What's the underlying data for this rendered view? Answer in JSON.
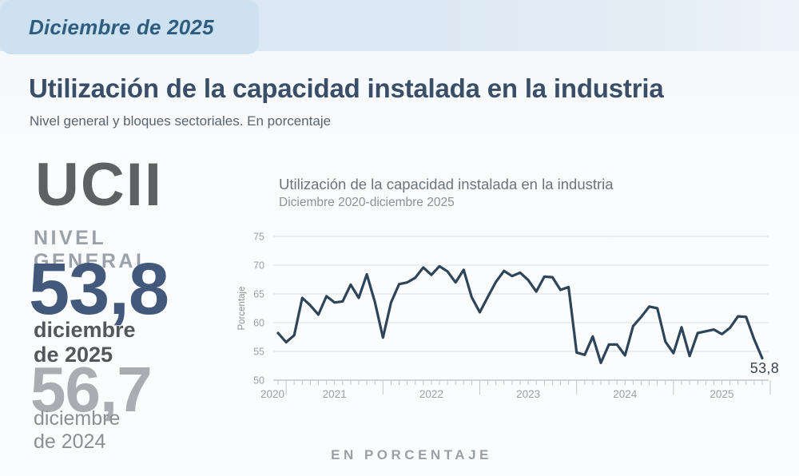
{
  "badge": {
    "label": "Diciembre de 2025"
  },
  "header": {
    "title": "Utilización de la capacidad instalada en la industria",
    "subtitle": "Nivel general y bloques sectoriales. En porcentaje"
  },
  "panel": {
    "acronym": "UCII",
    "level_label": "NIVEL GENERAL",
    "current_value": "53,8",
    "current_date": "diciembre de 2025",
    "previous_value": "56,7",
    "previous_date": "diciembre de 2024"
  },
  "chart_data": {
    "type": "line",
    "title": "Utilización de la capacidad instalada en la industria",
    "subtitle": "Diciembre 2020-diciembre 2025",
    "ylabel": "Porcentaje",
    "ylim": [
      50,
      75
    ],
    "yticks": [
      75,
      70,
      65,
      60,
      55,
      50
    ],
    "grid": "horizontal",
    "legend": "none",
    "x_unit": "month",
    "x_range": "2020-12 to 2025-12",
    "year_labels": [
      "2020",
      "2021",
      "2022",
      "2023",
      "2024",
      "2025"
    ],
    "end_label": "53,8",
    "line_color": "#2e4459",
    "values": [
      58.2,
      56.6,
      57.8,
      64.3,
      63.0,
      61.4,
      64.6,
      63.5,
      63.7,
      66.6,
      64.3,
      68.4,
      63.6,
      57.4,
      63.5,
      66.7,
      67.0,
      67.8,
      69.6,
      68.3,
      69.8,
      68.9,
      67.0,
      69.2,
      64.4,
      61.8,
      64.5,
      67.1,
      69.0,
      68.1,
      68.7,
      67.4,
      65.4,
      68.0,
      67.9,
      65.7,
      66.2,
      54.8,
      54.4,
      57.6,
      53.0,
      56.2,
      56.2,
      54.3,
      59.4,
      61.0,
      62.8,
      62.5,
      56.7,
      54.7,
      59.2,
      54.2,
      58.2,
      58.5,
      58.8,
      58.0,
      59.1,
      61.1,
      61.0,
      57.1,
      53.8
    ]
  },
  "footer": {
    "label": "EN PORCENTAJE"
  },
  "colors": {
    "accent_blue": "#43597c",
    "badge_bg": "#cde1f0",
    "strip_bg": "#dde9f4",
    "line": "#2e4459",
    "grid": "#dbdfe2",
    "axis": "#c2c7cb",
    "muted_text": "#9aa1a7"
  }
}
